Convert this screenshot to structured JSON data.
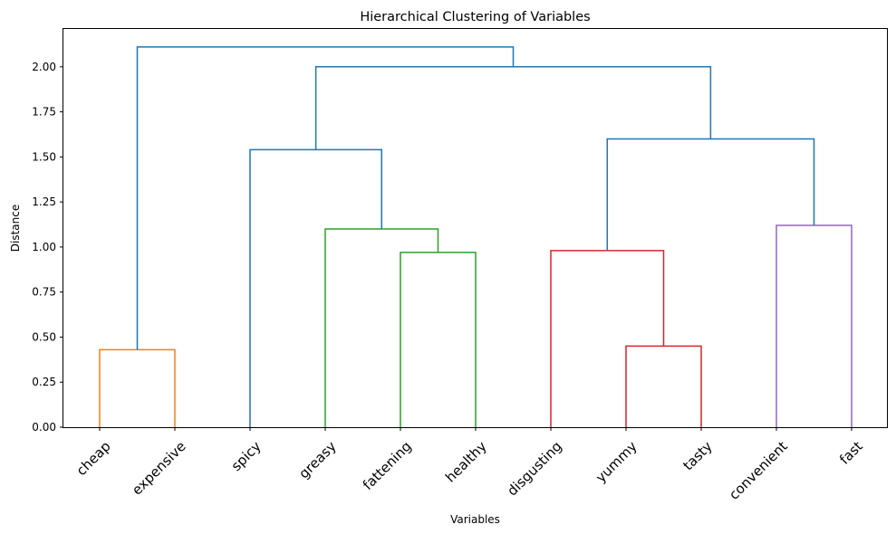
{
  "chart_data": {
    "type": "dendrogram",
    "title": "Hierarchical Clustering of Variables",
    "xlabel": "Variables",
    "ylabel": "Distance",
    "ylim": [
      0,
      2.21
    ],
    "yticks": [
      "0.00",
      "0.25",
      "0.50",
      "0.75",
      "1.00",
      "1.25",
      "1.50",
      "1.75",
      "2.00"
    ],
    "grid": false,
    "leaves": [
      "cheap",
      "expensive",
      "spicy",
      "greasy",
      "fattening",
      "healthy",
      "disgusting",
      "yummy",
      "tasty",
      "convenient",
      "fast"
    ],
    "colors": {
      "above_threshold": "#1f77b4",
      "cluster_1": "#ff7f0e",
      "cluster_2": "#2ca02c",
      "cluster_3": "#d62728",
      "cluster_4": "#9467bd"
    },
    "merges": [
      {
        "left": "cheap",
        "right": "expensive",
        "height": 0.43,
        "color": "cluster_1"
      },
      {
        "left": "fattening",
        "right": "healthy",
        "height": 0.97,
        "color": "cluster_2"
      },
      {
        "left": "greasy",
        "right": "fattening+healthy",
        "height": 1.1,
        "color": "cluster_2"
      },
      {
        "left": "spicy",
        "right": "greasy+fattening+healthy",
        "height": 1.54,
        "color": "above_threshold"
      },
      {
        "left": "yummy",
        "right": "tasty",
        "height": 0.45,
        "color": "cluster_3"
      },
      {
        "left": "disgusting",
        "right": "yummy+tasty",
        "height": 0.98,
        "color": "cluster_3"
      },
      {
        "left": "convenient",
        "right": "fast",
        "height": 1.12,
        "color": "cluster_4"
      },
      {
        "left": "disgusting+yummy+tasty",
        "right": "convenient+fast",
        "height": 1.6,
        "color": "above_threshold"
      },
      {
        "left": "spicy+greasy+fattening+healthy",
        "right": "disgusting+yummy+tasty+convenient+fast",
        "height": 2.0,
        "color": "above_threshold"
      },
      {
        "left": "cheap+expensive",
        "right": "spicy+greasy+fattening+healthy+disgusting+yummy+tasty+convenient+fast",
        "height": 2.11,
        "color": "above_threshold"
      }
    ]
  }
}
